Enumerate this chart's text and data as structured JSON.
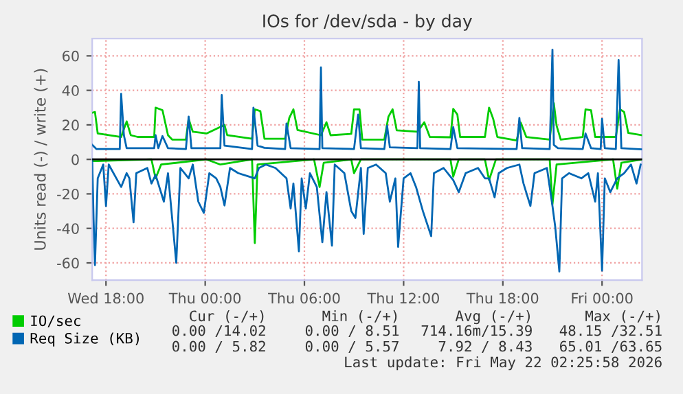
{
  "chart_data": {
    "type": "line",
    "title": "IOs for /dev/sda - by day",
    "ylabel": "Units read (-) / write (+)",
    "xlim": [
      "2026-05-20T17:10",
      "2026-05-22T02:25"
    ],
    "xticks": [
      {
        "value": "2026-05-20T18:00",
        "label": "Wed 18:00"
      },
      {
        "value": "2026-05-21T00:00",
        "label": "Thu 00:00"
      },
      {
        "value": "2026-05-21T06:00",
        "label": "Thu 06:00"
      },
      {
        "value": "2026-05-21T12:00",
        "label": "Thu 12:00"
      },
      {
        "value": "2026-05-21T18:00",
        "label": "Thu 18:00"
      },
      {
        "value": "2026-05-22T00:00",
        "label": "Fri 00:00"
      }
    ],
    "ylim": [
      -70,
      70
    ],
    "yticks": [
      -60,
      -40,
      -20,
      0,
      20,
      40,
      60
    ],
    "grid": true,
    "legend": "bottom left",
    "ref_lines": [
      {
        "axis": "y",
        "value": 0,
        "color": "#000000"
      }
    ],
    "series": [
      {
        "name": "IO/sec",
        "color": "#00cc00",
        "x": [
          "2026-05-20T17:10",
          "2026-05-20T17:20",
          "2026-05-20T17:30",
          "2026-05-20T18:55",
          "2026-05-20T19:15",
          "2026-05-20T19:30",
          "2026-05-20T19:55",
          "2026-05-20T20:55",
          "2026-05-20T21:00",
          "2026-05-20T21:25",
          "2026-05-20T21:45",
          "2026-05-20T22:00",
          "2026-05-20T22:50",
          "2026-05-20T23:00",
          "2026-05-20T23:15",
          "2026-05-21T00:05",
          "2026-05-21T01:10",
          "2026-05-21T01:20",
          "2026-05-21T02:50",
          "2026-05-21T03:00",
          "2026-05-21T03:20",
          "2026-05-21T03:35",
          "2026-05-21T04:50",
          "2026-05-21T05:05",
          "2026-05-21T05:20",
          "2026-05-21T05:35",
          "2026-05-21T07:00",
          "2026-05-21T07:20",
          "2026-05-21T07:35",
          "2026-05-21T08:50",
          "2026-05-21T09:00",
          "2026-05-21T09:20",
          "2026-05-21T09:30",
          "2026-05-21T10:50",
          "2026-05-21T11:05",
          "2026-05-21T11:20",
          "2026-05-21T11:35",
          "2026-05-21T12:50",
          "2026-05-21T13:15",
          "2026-05-21T13:35",
          "2026-05-21T14:50",
          "2026-05-21T15:00",
          "2026-05-21T15:15",
          "2026-05-21T15:25",
          "2026-05-21T16:55",
          "2026-05-21T17:10",
          "2026-05-21T17:25",
          "2026-05-21T17:40",
          "2026-05-21T18:50",
          "2026-05-21T19:05",
          "2026-05-21T19:25",
          "2026-05-21T20:50",
          "2026-05-21T21:05",
          "2026-05-21T21:15",
          "2026-05-21T21:30",
          "2026-05-21T22:50",
          "2026-05-21T23:00",
          "2026-05-21T23:20",
          "2026-05-21T23:35",
          "2026-05-22T00:50",
          "2026-05-22T01:05",
          "2026-05-22T01:20",
          "2026-05-22T01:35",
          "2026-05-22T02:25"
        ],
        "values": [
          27,
          27.5,
          15,
          13,
          22,
          14,
          13,
          13,
          30,
          28.5,
          14,
          11.5,
          11.5,
          23.5,
          16,
          15,
          20,
          14,
          12,
          29,
          28,
          12,
          12,
          24,
          29,
          17,
          14,
          21.5,
          14,
          14.8,
          29,
          29,
          11.5,
          11.5,
          24.8,
          29,
          16.8,
          16,
          21.5,
          13,
          12.8,
          29.3,
          26,
          13,
          13,
          30,
          23.5,
          13,
          11,
          21.3,
          13,
          11.5,
          32.5,
          19.5,
          11.5,
          13,
          29,
          28.5,
          13,
          13,
          29,
          27.5,
          15.3,
          14
        ]
      },
      {
        "color": "#00cc00",
        "x": [
          "2026-05-20T17:10",
          "2026-05-20T17:25",
          "2026-05-20T20:45",
          "2026-05-20T21:00",
          "2026-05-20T21:20",
          "2026-05-21T00:05",
          "2026-05-21T00:55",
          "2026-05-21T02:50",
          "2026-05-21T03:00",
          "2026-05-21T03:10",
          "2026-05-21T06:35",
          "2026-05-21T06:55",
          "2026-05-21T07:10",
          "2026-05-21T08:50",
          "2026-05-21T09:00",
          "2026-05-21T09:25",
          "2026-05-21T14:50",
          "2026-05-21T15:00",
          "2026-05-21T15:20",
          "2026-05-21T16:55",
          "2026-05-21T17:10",
          "2026-05-21T17:35",
          "2026-05-21T20:50",
          "2026-05-21T21:00",
          "2026-05-21T21:15",
          "2026-05-22T00:40",
          "2026-05-22T00:55",
          "2026-05-22T01:10",
          "2026-05-22T02:25"
        ],
        "values": [
          -1,
          -1,
          0,
          -11,
          -3,
          0,
          -3,
          0,
          -48.5,
          -3,
          0,
          -16,
          -2,
          0,
          -8,
          0,
          0,
          -10,
          0,
          0,
          -12,
          0,
          0,
          -26,
          -3,
          0,
          -17,
          -2,
          0
        ]
      },
      {
        "name": "Req Size (KB)",
        "color": "#0066b3",
        "x": [
          "2026-05-20T17:10",
          "2026-05-20T17:25",
          "2026-05-20T18:50",
          "2026-05-20T18:55",
          "2026-05-20T19:05",
          "2026-05-20T19:15",
          "2026-05-20T20:55",
          "2026-05-20T21:00",
          "2026-05-20T21:10",
          "2026-05-20T21:25",
          "2026-05-20T21:45",
          "2026-05-20T22:50",
          "2026-05-20T23:00",
          "2026-05-20T23:10",
          "2026-05-21T00:55",
          "2026-05-21T01:00",
          "2026-05-21T01:10",
          "2026-05-21T02:50",
          "2026-05-21T02:55",
          "2026-05-21T03:10",
          "2026-05-21T03:35",
          "2026-05-21T04:50",
          "2026-05-21T04:55",
          "2026-05-21T05:10",
          "2026-05-21T06:55",
          "2026-05-21T07:00",
          "2026-05-21T07:05",
          "2026-05-21T09:00",
          "2026-05-21T09:15",
          "2026-05-21T09:25",
          "2026-05-21T10:50",
          "2026-05-21T11:00",
          "2026-05-21T11:10",
          "2026-05-21T12:50",
          "2026-05-21T12:55",
          "2026-05-21T13:00",
          "2026-05-21T14:50",
          "2026-05-21T15:00",
          "2026-05-21T15:15",
          "2026-05-21T18:50",
          "2026-05-21T19:00",
          "2026-05-21T19:10",
          "2026-05-21T20:50",
          "2026-05-21T21:00",
          "2026-05-21T21:05",
          "2026-05-21T21:20",
          "2026-05-21T22:50",
          "2026-05-21T23:00",
          "2026-05-21T23:20",
          "2026-05-21T23:55",
          "2026-05-22T00:00",
          "2026-05-22T00:10",
          "2026-05-22T00:50",
          "2026-05-22T01:00",
          "2026-05-22T01:10",
          "2026-05-22T02:25"
        ],
        "values": [
          8.4,
          6,
          6,
          38,
          14,
          6.5,
          6.5,
          14,
          6.5,
          13.5,
          6.5,
          6,
          24.8,
          6.5,
          6.5,
          37.3,
          8,
          6,
          30,
          8,
          6.7,
          6,
          20.8,
          6.5,
          6,
          53.3,
          6.5,
          6,
          26,
          6.5,
          6,
          19.5,
          7,
          6.5,
          45,
          6.5,
          6,
          18.7,
          6.5,
          6,
          24,
          6.5,
          6,
          63.6,
          8.4,
          6.5,
          6,
          15,
          6.5,
          6,
          23.5,
          6.5,
          6,
          57.6,
          6.5,
          5.8
        ]
      },
      {
        "color": "#0066b3",
        "x": [
          "2026-05-20T17:10",
          "2026-05-20T17:15",
          "2026-05-20T17:20",
          "2026-05-20T17:30",
          "2026-05-20T17:50",
          "2026-05-20T18:00",
          "2026-05-20T18:10",
          "2026-05-20T18:55",
          "2026-05-20T19:15",
          "2026-05-20T19:25",
          "2026-05-20T19:40",
          "2026-05-20T19:50",
          "2026-05-20T20:30",
          "2026-05-20T20:45",
          "2026-05-20T21:00",
          "2026-05-20T21:30",
          "2026-05-20T21:45",
          "2026-05-20T22:15",
          "2026-05-20T22:30",
          "2026-05-20T23:00",
          "2026-05-20T23:15",
          "2026-05-20T23:35",
          "2026-05-20T23:55",
          "2026-05-21T00:15",
          "2026-05-21T00:40",
          "2026-05-21T00:55",
          "2026-05-21T01:10",
          "2026-05-21T01:30",
          "2026-05-21T02:00",
          "2026-05-21T03:00",
          "2026-05-21T03:15",
          "2026-05-21T03:40",
          "2026-05-21T04:15",
          "2026-05-21T04:55",
          "2026-05-21T05:10",
          "2026-05-21T05:20",
          "2026-05-21T05:40",
          "2026-05-21T05:50",
          "2026-05-21T06:05",
          "2026-05-21T06:20",
          "2026-05-21T06:45",
          "2026-05-21T07:05",
          "2026-05-21T07:20",
          "2026-05-21T07:40",
          "2026-05-21T07:50",
          "2026-05-21T08:25",
          "2026-05-21T08:50",
          "2026-05-21T09:05",
          "2026-05-21T09:25",
          "2026-05-21T09:35",
          "2026-05-21T09:50",
          "2026-05-21T10:20",
          "2026-05-21T10:55",
          "2026-05-21T11:10",
          "2026-05-21T11:30",
          "2026-05-21T11:40",
          "2026-05-21T12:00",
          "2026-05-21T12:25",
          "2026-05-21T12:45",
          "2026-05-21T13:10",
          "2026-05-21T13:40",
          "2026-05-21T13:50",
          "2026-05-21T14:25",
          "2026-05-21T15:00",
          "2026-05-21T15:20",
          "2026-05-21T15:45",
          "2026-05-21T16:30",
          "2026-05-21T16:55",
          "2026-05-21T17:10",
          "2026-05-21T17:30",
          "2026-05-21T17:45",
          "2026-05-21T18:15",
          "2026-05-21T19:00",
          "2026-05-21T19:15",
          "2026-05-21T19:40",
          "2026-05-21T19:55",
          "2026-05-21T20:40",
          "2026-05-21T21:00",
          "2026-05-21T21:10",
          "2026-05-21T21:25",
          "2026-05-21T21:35",
          "2026-05-21T22:00",
          "2026-05-21T22:45",
          "2026-05-21T23:10",
          "2026-05-21T23:35",
          "2026-05-21T23:45",
          "2026-05-22T00:00",
          "2026-05-22T00:10",
          "2026-05-22T00:30",
          "2026-05-22T00:55",
          "2026-05-22T01:20",
          "2026-05-22T01:45",
          "2026-05-22T02:05",
          "2026-05-22T02:20"
        ],
        "values": [
          0,
          -35,
          -61.3,
          -11,
          -3,
          -27,
          -3,
          -16,
          -8,
          -11,
          -36.5,
          -8,
          -5,
          -14,
          -9,
          -24.5,
          -8,
          -60,
          -5,
          -11,
          -3,
          -24.5,
          -31,
          -8,
          -11,
          -16,
          -26.7,
          -5,
          -8,
          -11,
          -5,
          -3,
          -5,
          -11,
          -28.5,
          -14,
          -53.3,
          -11,
          -28.5,
          -8,
          -16,
          -48,
          -19,
          -50,
          -3,
          -8,
          -30,
          -34,
          -5,
          -43.2,
          -5,
          -3,
          -8,
          -24.5,
          -11,
          -50.7,
          -11,
          -8,
          -16,
          -30,
          -44.5,
          -8,
          -5,
          -12,
          -19,
          -8,
          -5,
          -11,
          -11,
          -22,
          -8,
          -5,
          -3,
          -14,
          -27,
          -8,
          -5,
          -27,
          -39,
          -65,
          -11,
          -8,
          -11,
          -8,
          -24.5,
          -8,
          -64.5,
          -11,
          -19,
          -11,
          -8,
          -3,
          -14,
          -3
        ]
      }
    ],
    "annotations": [
      "Cur (-/+)",
      "Min (-/+)",
      "Avg (-/+)",
      "Max (-/+)",
      "0.00 /14.02",
      "0.00 / 8.51",
      "714.16m/15.39",
      "48.15 /32.51",
      "0.00 / 5.82",
      "0.00 / 5.57",
      "7.92 / 8.43",
      "65.01 /63.65",
      "Last update: Fri May 22 02:25:58 2026"
    ]
  }
}
